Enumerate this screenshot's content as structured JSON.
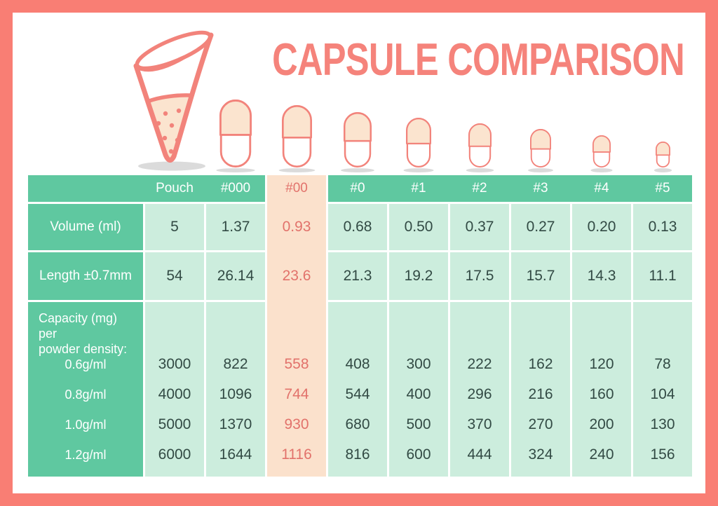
{
  "title": "CAPSULE COMPARISON",
  "colors": {
    "frame_salmon": "#F97E74",
    "title_salmon": "#F5837B",
    "header_teal": "#5FC8A0",
    "cell_green": "#CCEDDD",
    "highlight_peach": "#FBE1CC",
    "highlight_text": "#E2726B",
    "value_text": "#324A44",
    "capsule_fill": "#FBE4CF",
    "capsule_stroke": "#F2837B",
    "shadow_gray": "#DBDBDB"
  },
  "icons": {
    "pouch": "pouch-icon",
    "capsule": "capsule-icon"
  },
  "chart_data": {
    "type": "table",
    "title": "CAPSULE COMPARISON",
    "columns": [
      "Pouch",
      "#000",
      "#00",
      "#0",
      "#1",
      "#2",
      "#3",
      "#4",
      "#5"
    ],
    "highlighted_column": "#00",
    "row_groups": [
      {
        "rows": [
          {
            "label": "Volume (ml)",
            "values": [
              "5",
              "1.37",
              "0.93",
              "0.68",
              "0.50",
              "0.37",
              "0.27",
              "0.20",
              "0.13"
            ]
          },
          {
            "label": "Length ±0.7mm",
            "values": [
              "54",
              "26.14",
              "23.6",
              "21.3",
              "19.2",
              "17.5",
              "15.7",
              "14.3",
              "11.1"
            ]
          }
        ]
      },
      {
        "group_label": "Capacity (mg) per\npowder density:",
        "rows": [
          {
            "label": "0.6g/ml",
            "values": [
              "3000",
              "822",
              "558",
              "408",
              "300",
              "222",
              "162",
              "120",
              "78"
            ]
          },
          {
            "label": "0.8g/ml",
            "values": [
              "4000",
              "1096",
              "744",
              "544",
              "400",
              "296",
              "216",
              "160",
              "104"
            ]
          },
          {
            "label": "1.0g/ml",
            "values": [
              "5000",
              "1370",
              "930",
              "680",
              "500",
              "370",
              "270",
              "200",
              "130"
            ]
          },
          {
            "label": "1.2g/ml",
            "values": [
              "6000",
              "1644",
              "1116",
              "816",
              "600",
              "444",
              "324",
              "240",
              "156"
            ]
          }
        ]
      }
    ]
  }
}
